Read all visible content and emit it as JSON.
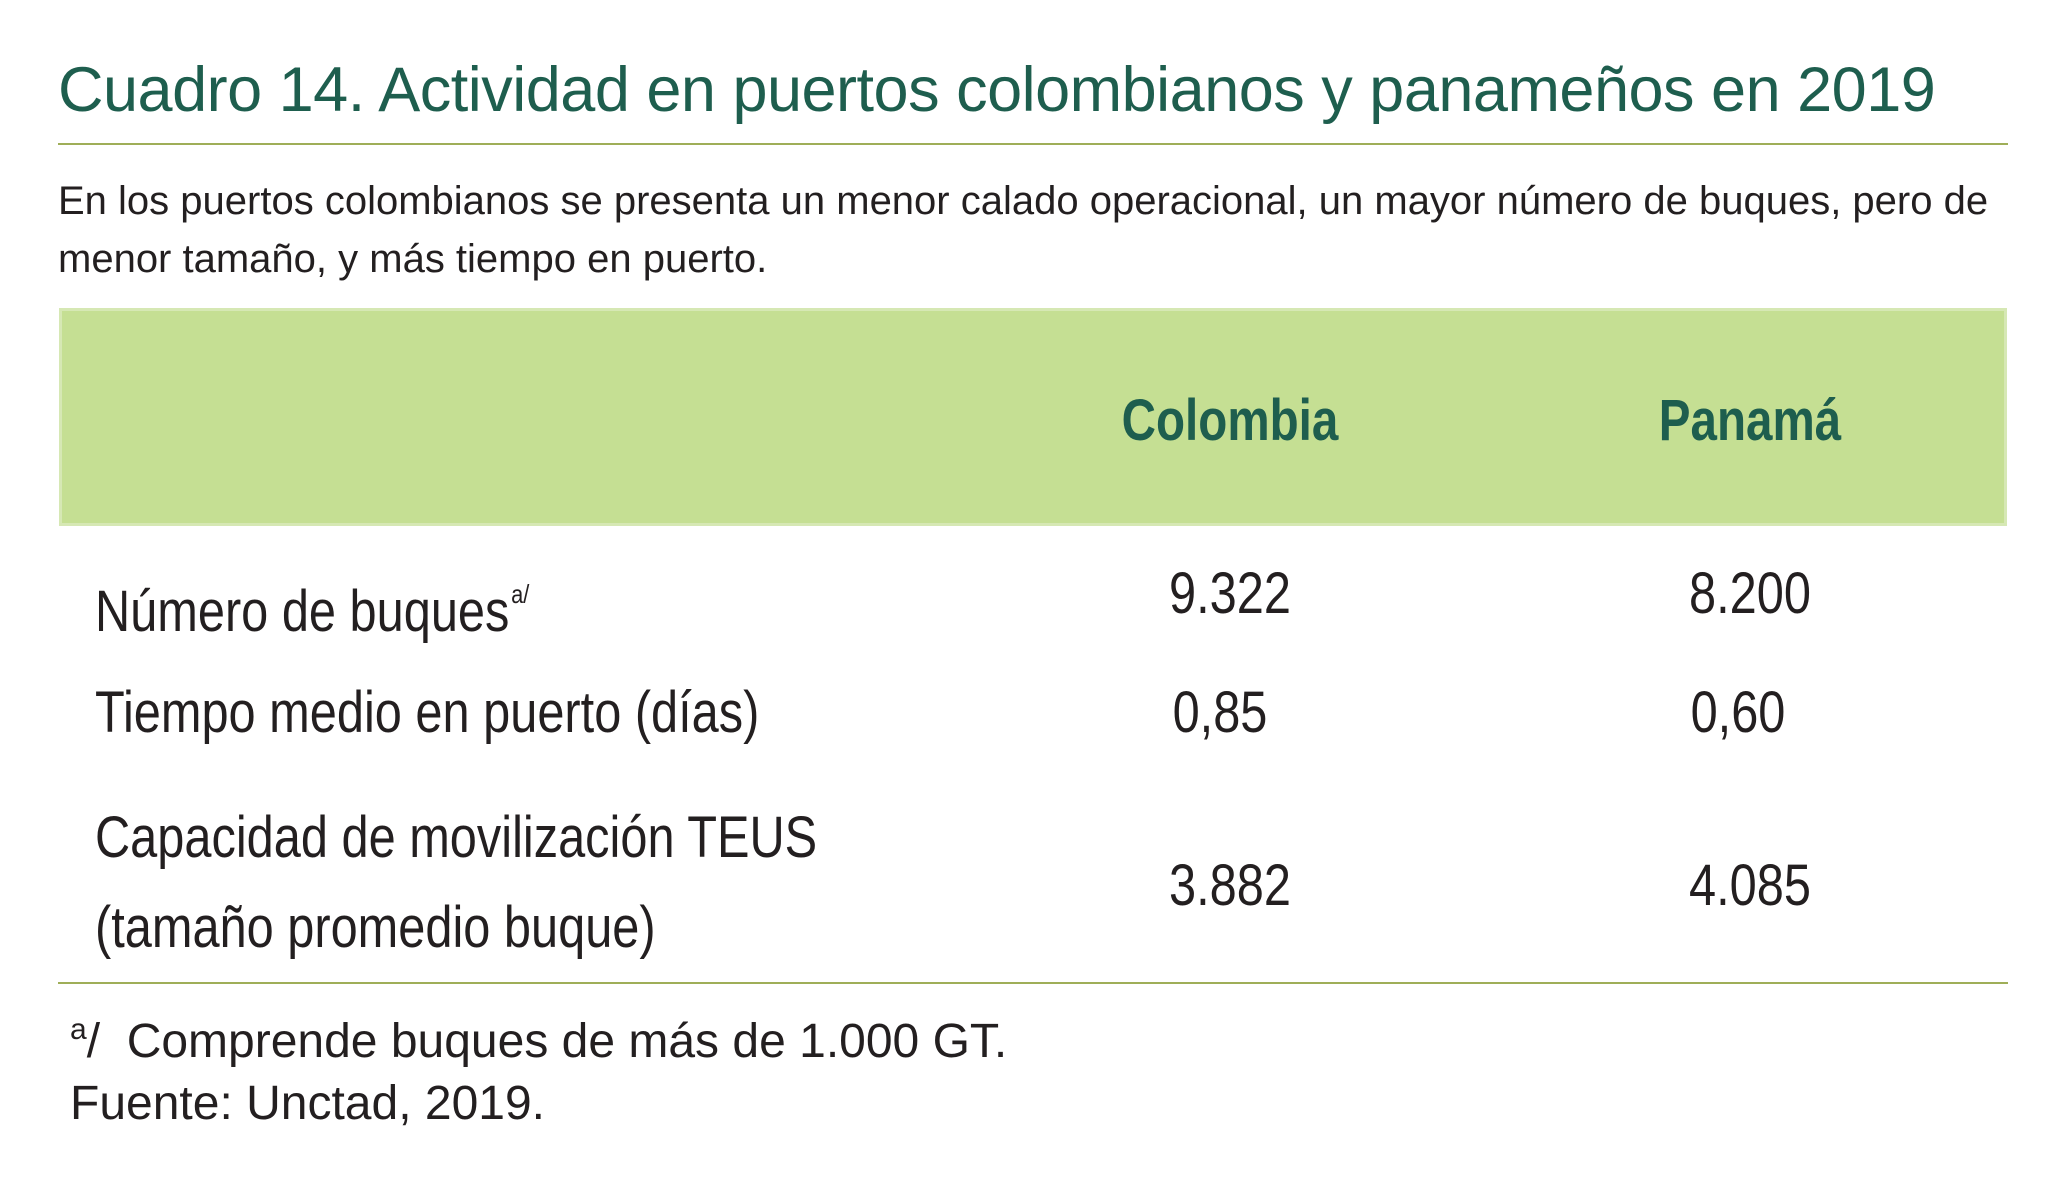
{
  "title": "Cuadro 14. Actividad en puertos colombianos y panameños en 2019",
  "subtitle": "En los puertos colombianos se presenta un menor calado operacional, un mayor número de buques, pero de menor tamaño, y más tiempo en puerto.",
  "table": {
    "header": {
      "blank": "",
      "colombia": "Colombia",
      "panama": "Panamá"
    },
    "rows": [
      {
        "label": "Número de buques",
        "footnote_mark": "a/",
        "colombia": "9.322",
        "panama": "8.200"
      },
      {
        "label": "Tiempo medio en puerto (días)",
        "colombia": "0,85",
        "panama": "0,60"
      },
      {
        "label_line1": "Capacidad de movilización TEUS",
        "label_line2": "(tamaño promedio buque)",
        "colombia": "3.882",
        "panama": "4.085"
      }
    ]
  },
  "footnote": {
    "mark": "a",
    "text": "/  Comprende buques de más de 1.000 GT."
  },
  "source": "Fuente: Unctad, 2019.",
  "colors": {
    "title": "#1e5e4e",
    "header_bg": "#c5df93",
    "rule": "#9fae58",
    "text": "#231f20"
  }
}
